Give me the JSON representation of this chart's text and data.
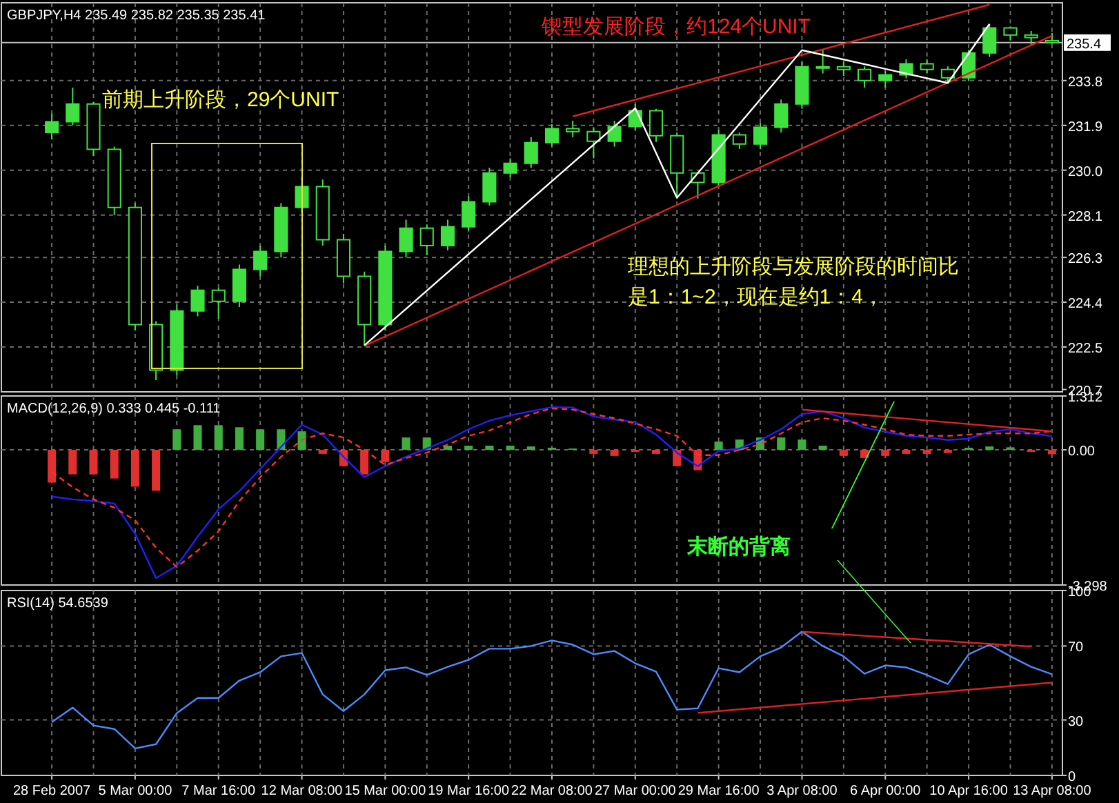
{
  "chart_data": [
    {
      "type": "candlestick",
      "title": "GBPJPY,H4 235.49 235.82 235.35 235.41",
      "color": "#40e040",
      "grid": true,
      "tick_labels": "y",
      "categories": [
        null,
        null,
        null,
        null,
        null,
        null,
        null,
        null,
        null,
        null,
        null,
        null,
        null,
        null,
        null,
        null,
        null,
        null,
        null,
        null,
        null,
        null,
        null,
        null,
        null,
        null,
        null,
        null,
        null,
        null,
        null,
        null,
        null,
        null,
        null,
        null,
        null,
        null,
        null,
        null,
        null,
        null,
        null,
        null,
        null,
        null,
        null,
        null,
        null
      ],
      "ohlc": [
        [
          231.6,
          232.4,
          231.3,
          232.05
        ],
        [
          232.05,
          233.5,
          231.9,
          232.81
        ],
        [
          232.81,
          232.9,
          230.6,
          230.88
        ],
        [
          230.88,
          231.0,
          228.1,
          228.42
        ],
        [
          228.42,
          228.6,
          223.2,
          223.45
        ],
        [
          223.45,
          223.6,
          221.1,
          221.52
        ],
        [
          221.52,
          224.3,
          221.3,
          224.03
        ],
        [
          224.03,
          225.1,
          223.8,
          224.91
        ],
        [
          224.91,
          225.0,
          223.7,
          224.44
        ],
        [
          224.44,
          226.0,
          224.2,
          225.79
        ],
        [
          225.79,
          226.8,
          225.5,
          226.55
        ],
        [
          226.55,
          228.6,
          226.3,
          228.42
        ],
        [
          228.42,
          229.7,
          228.2,
          229.3
        ],
        [
          229.3,
          229.6,
          226.8,
          227.05
        ],
        [
          227.05,
          227.3,
          225.2,
          225.5
        ],
        [
          225.5,
          225.7,
          222.55,
          223.45
        ],
        [
          223.45,
          226.8,
          223.2,
          226.55
        ],
        [
          226.55,
          227.9,
          226.3,
          227.54
        ],
        [
          227.54,
          227.7,
          226.4,
          226.8
        ],
        [
          226.8,
          227.9,
          226.6,
          227.6
        ],
        [
          227.6,
          228.9,
          227.4,
          228.66
        ],
        [
          228.66,
          230.1,
          228.5,
          229.88
        ],
        [
          229.88,
          230.5,
          229.7,
          230.29
        ],
        [
          230.29,
          231.4,
          230.1,
          231.17
        ],
        [
          231.17,
          231.95,
          231.0,
          231.76
        ],
        [
          231.76,
          232.1,
          231.4,
          231.64
        ],
        [
          231.64,
          231.8,
          230.5,
          231.23
        ],
        [
          231.23,
          232.1,
          231.0,
          231.85
        ],
        [
          231.85,
          232.8,
          231.7,
          232.52
        ],
        [
          232.52,
          232.6,
          231.2,
          231.46
        ],
        [
          231.46,
          231.6,
          228.8,
          229.88
        ],
        [
          229.88,
          229.9,
          228.8,
          229.48
        ],
        [
          229.48,
          231.7,
          229.3,
          231.5
        ],
        [
          231.5,
          231.6,
          230.9,
          231.11
        ],
        [
          231.11,
          232.0,
          230.9,
          231.82
        ],
        [
          231.82,
          233.0,
          231.6,
          232.81
        ],
        [
          232.81,
          234.6,
          232.6,
          234.39
        ],
        [
          234.39,
          235.1,
          234.1,
          234.39
        ],
        [
          234.39,
          234.6,
          234.0,
          234.27
        ],
        [
          234.27,
          234.4,
          233.5,
          233.8
        ],
        [
          233.8,
          234.2,
          233.5,
          234.04
        ],
        [
          234.04,
          234.7,
          233.9,
          234.51
        ],
        [
          234.51,
          234.7,
          234.1,
          234.27
        ],
        [
          234.27,
          234.4,
          233.7,
          233.92
        ],
        [
          233.92,
          235.1,
          233.8,
          234.97
        ],
        [
          234.97,
          236.2,
          234.8,
          236.03
        ],
        [
          236.03,
          236.1,
          235.5,
          235.73
        ],
        [
          235.73,
          235.9,
          235.3,
          235.62
        ],
        [
          235.49,
          235.82,
          235.35,
          235.41
        ]
      ],
      "series": [
        {
          "type": "line",
          "color": "#e02020",
          "values": [
            null,
            null,
            null,
            null,
            null,
            null,
            null,
            null,
            null,
            null,
            null,
            null,
            null,
            null,
            null,
            null,
            null,
            null,
            null,
            null,
            null,
            null,
            null,
            null,
            null,
            232.28,
            null,
            null,
            null,
            null,
            null,
            null,
            null,
            null,
            null,
            null,
            null,
            null,
            null,
            null,
            null,
            null,
            null,
            null,
            null,
            237.02,
            null,
            null,
            null
          ]
        },
        {
          "type": "line",
          "color": "#e02020",
          "values": [
            null,
            null,
            null,
            null,
            null,
            null,
            null,
            null,
            null,
            null,
            null,
            null,
            null,
            null,
            null,
            222.55,
            null,
            null,
            null,
            null,
            null,
            null,
            null,
            null,
            null,
            null,
            null,
            null,
            null,
            null,
            null,
            null,
            null,
            null,
            null,
            null,
            null,
            null,
            null,
            null,
            null,
            null,
            null,
            null,
            null,
            null,
            null,
            null,
            235.7
          ]
        },
        {
          "type": "line",
          "color": "#ffffff",
          "values": [
            null,
            null,
            null,
            null,
            null,
            null,
            null,
            null,
            null,
            null,
            null,
            null,
            null,
            null,
            null,
            222.57,
            null,
            null,
            null,
            null,
            null,
            null,
            null,
            null,
            null,
            null,
            null,
            null,
            232.63,
            null,
            228.83,
            null,
            null,
            null,
            null,
            null,
            235.09,
            null,
            null,
            null,
            null,
            null,
            null,
            233.7,
            null,
            236.2,
            null,
            null,
            null
          ]
        }
      ],
      "ylim": [
        220.6,
        237.1
      ],
      "yticks": [
        220.7,
        222.5,
        224.4,
        226.3,
        228.1,
        {
          "value": 230,
          "label": "230.0"
        },
        231.9,
        233.8
      ],
      "ref_lines": [
        {
          "axis": "y",
          "value": 235.41,
          "label": "235.4",
          "color": "#c0c0c0"
        }
      ],
      "annotations": [
        "锲型发展阶段，约124个UNIT",
        "前期上升阶段，29个UNIT",
        "理想的上升阶段与发展阶段的时间比",
        "是1：1~2，现在是约1：4，"
      ]
    },
    {
      "type": "bar",
      "title": "MACD(12,26,9) 0.333 0.445 -0.111",
      "grid": true,
      "tick_labels": "y",
      "categories": [
        null,
        null,
        null,
        null,
        null,
        null,
        null,
        null,
        null,
        null,
        null,
        null,
        null,
        null,
        null,
        null,
        null,
        null,
        null,
        null,
        null,
        null,
        null,
        null,
        null,
        null,
        null,
        null,
        null,
        null,
        null,
        null,
        null,
        null,
        null,
        null,
        null,
        null,
        null,
        null,
        null,
        null,
        null,
        null,
        null,
        null,
        null,
        null,
        null
      ],
      "series": [
        {
          "type": "bar",
          "values": [
            -0.8,
            -0.6,
            -0.6,
            -0.7,
            -0.9,
            -1.0,
            0.5,
            0.6,
            0.6,
            0.55,
            0.5,
            0.5,
            0.45,
            -0.1,
            -0.4,
            -0.6,
            -0.3,
            0.3,
            0.3,
            0.1,
            0.1,
            0.1,
            0.1,
            0.08,
            0.05,
            0.03,
            -0.1,
            -0.15,
            -0.05,
            -0.1,
            -0.4,
            -0.5,
            0.2,
            0.25,
            0.3,
            0.3,
            0.25,
            0.1,
            -0.15,
            -0.2,
            -0.15,
            -0.1,
            -0.1,
            -0.08,
            0.05,
            0.08,
            0.06,
            -0.05,
            -0.11
          ],
          "colors": [
            "#e03030",
            "#e03030",
            "#e03030",
            "#e03030",
            "#e03030",
            "#e03030",
            "#3fae3f",
            "#3fae3f",
            "#3fae3f",
            "#3fae3f",
            "#3fae3f",
            "#3fae3f",
            "#3fae3f",
            "#e03030",
            "#e03030",
            "#e03030",
            "#e03030",
            "#3fae3f",
            "#3fae3f",
            "#3fae3f",
            "#3fae3f",
            "#3fae3f",
            "#3fae3f",
            "#3fae3f",
            "#3fae3f",
            "#3fae3f",
            "#e03030",
            "#e03030",
            "#e03030",
            "#e03030",
            "#e03030",
            "#e03030",
            "#3fae3f",
            "#3fae3f",
            "#3fae3f",
            "#3fae3f",
            "#3fae3f",
            "#3fae3f",
            "#e03030",
            "#e03030",
            "#e03030",
            "#e03030",
            "#e03030",
            "#e03030",
            "#3fae3f",
            "#3fae3f",
            "#3fae3f",
            "#e03030",
            "#e03030"
          ]
        },
        {
          "type": "line",
          "color": "#2020ff",
          "values": [
            -1.14,
            -1.21,
            -1.25,
            -1.31,
            -2.05,
            -3.13,
            -2.83,
            -2.12,
            -1.45,
            -1.01,
            -0.47,
            0.07,
            0.61,
            0.37,
            -0.17,
            -0.67,
            -0.4,
            -0.17,
            0.03,
            0.24,
            0.5,
            0.71,
            0.84,
            0.94,
            1.04,
            1.03,
            0.81,
            0.74,
            0.67,
            0.37,
            -0.07,
            -0.4,
            -0.03,
            0.03,
            0.24,
            0.5,
            0.87,
            0.94,
            0.77,
            0.54,
            0.44,
            0.34,
            0.3,
            0.24,
            0.27,
            0.44,
            0.5,
            0.4,
            0.33
          ]
        },
        {
          "type": "line",
          "color": "#ff3030",
          "line_style": "dashed",
          "values": [
            -0.54,
            -0.91,
            -1.21,
            -1.41,
            -1.72,
            -2.39,
            -2.86,
            -2.46,
            -1.99,
            -1.25,
            -0.67,
            -0.17,
            0.24,
            0.4,
            0.3,
            0.0,
            -0.37,
            -0.2,
            -0.07,
            0.13,
            0.34,
            0.47,
            0.67,
            0.87,
            1.01,
            0.98,
            0.87,
            0.77,
            0.64,
            0.5,
            0.34,
            -0.13,
            -0.13,
            0.0,
            0.13,
            0.4,
            0.67,
            0.77,
            0.71,
            0.61,
            0.5,
            0.37,
            0.34,
            0.34,
            0.37,
            0.4,
            0.4,
            0.4,
            0.45
          ]
        },
        {
          "type": "line",
          "color": "#e02020",
          "values": [
            null,
            null,
            null,
            null,
            null,
            null,
            null,
            null,
            null,
            null,
            null,
            null,
            null,
            null,
            null,
            null,
            null,
            null,
            null,
            null,
            null,
            null,
            null,
            null,
            null,
            null,
            null,
            null,
            null,
            null,
            null,
            null,
            null,
            null,
            null,
            null,
            0.98,
            null,
            null,
            null,
            null,
            null,
            null,
            null,
            null,
            null,
            null,
            null,
            0.45
          ]
        }
      ],
      "ylim": [
        -3.298,
        1.312
      ],
      "yticks": [
        -3.298,
        {
          "value": 0,
          "label": "0.00"
        },
        1.312
      ],
      "annotations": [
        "末断的背离"
      ]
    },
    {
      "type": "line",
      "title": "RSI(14) 54.6539",
      "grid": true,
      "categories": [
        "28 Feb 2007",
        null,
        null,
        null,
        "5 Mar 00:00",
        null,
        null,
        null,
        "7 Mar 16:00",
        null,
        null,
        null,
        "12 Mar 08:00",
        null,
        null,
        null,
        "15 Mar 00:00",
        null,
        null,
        null,
        "19 Mar 16:00",
        null,
        null,
        null,
        "22 Mar 08:00",
        null,
        null,
        null,
        "27 Mar 00:00",
        null,
        null,
        null,
        "29 Mar 16:00",
        null,
        null,
        null,
        "3 Apr 08:00",
        null,
        null,
        null,
        "6 Apr 00:00",
        null,
        null,
        null,
        "10 Apr 16:00",
        null,
        null,
        null,
        "13 Apr 08:00"
      ],
      "series": [
        {
          "type": "line",
          "color": "#4a8cff",
          "values": [
            28.8,
            36.7,
            27.0,
            25.1,
            14.6,
            16.9,
            33.7,
            41.9,
            41.9,
            51.3,
            55.8,
            64.4,
            66.2,
            43.8,
            34.8,
            43.8,
            56.9,
            58.4,
            54.3,
            58.7,
            62.5,
            68.5,
            68.5,
            70.0,
            73.0,
            70.7,
            65.5,
            67.3,
            60.6,
            56.1,
            35.6,
            36.3,
            58.0,
            55.8,
            64.4,
            69.2,
            77.8,
            70.0,
            64.4,
            55.0,
            59.5,
            58.4,
            54.3,
            49.4,
            65.5,
            70.7,
            64.4,
            58.7,
            54.7
          ]
        },
        {
          "type": "line",
          "color": "#e02020",
          "values": [
            null,
            null,
            null,
            null,
            null,
            null,
            null,
            null,
            null,
            null,
            null,
            null,
            null,
            null,
            null,
            null,
            null,
            null,
            null,
            null,
            null,
            null,
            null,
            null,
            null,
            null,
            null,
            null,
            null,
            null,
            null,
            null,
            null,
            null,
            null,
            null,
            77.7,
            null,
            null,
            null,
            null,
            null,
            null,
            null,
            null,
            null,
            null,
            69.7,
            null
          ]
        },
        {
          "type": "line",
          "color": "#e02020",
          "values": [
            null,
            null,
            null,
            null,
            null,
            null,
            null,
            null,
            null,
            null,
            null,
            null,
            null,
            null,
            null,
            null,
            null,
            null,
            null,
            null,
            null,
            null,
            null,
            null,
            null,
            null,
            null,
            null,
            null,
            null,
            null,
            33.8,
            null,
            null,
            null,
            null,
            null,
            null,
            null,
            null,
            null,
            null,
            null,
            null,
            null,
            null,
            null,
            null,
            50.2
          ]
        }
      ],
      "ylim": [
        0,
        100
      ],
      "yticks": [
        0,
        30,
        70,
        100
      ]
    }
  ]
}
